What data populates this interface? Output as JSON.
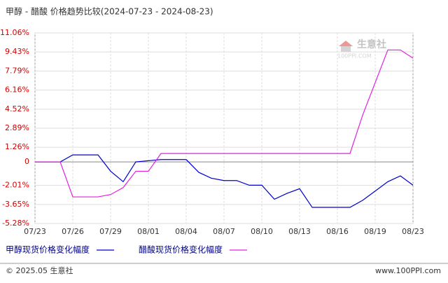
{
  "chart_data": {
    "type": "line",
    "title": "甲醇 - 醋酸 价格趋势比较(2024-07-23 - 2024-08-23)",
    "categories": [
      "07/23",
      null,
      null,
      "07/26",
      null,
      null,
      "07/29",
      null,
      null,
      "08/01",
      null,
      null,
      "08/04",
      null,
      null,
      "08/07",
      null,
      null,
      "08/10",
      null,
      null,
      "08/13",
      null,
      null,
      "08/16",
      null,
      null,
      "08/19",
      null,
      null,
      "08/23"
    ],
    "series": [
      {
        "name": "甲醇现货价格变化幅度",
        "color": "#0000cc",
        "values": [
          0,
          0,
          0,
          0.6,
          0.6,
          0.6,
          -0.8,
          -1.7,
          0,
          0.1,
          0.2,
          0.2,
          0.2,
          -0.9,
          -1.4,
          -1.6,
          -1.6,
          -2.0,
          -2.0,
          -3.2,
          -2.7,
          -2.3,
          -3.9,
          -3.9,
          -3.9,
          -3.9,
          -3.3,
          -2.5,
          -1.7,
          -1.2,
          -2.0
        ]
      },
      {
        "name": "醋酸现货价格变化幅度",
        "color": "#e020e0",
        "values": [
          0,
          0,
          0,
          -3.0,
          -3.0,
          -3.0,
          -2.8,
          -2.2,
          -0.8,
          -0.8,
          0.72,
          0.72,
          0.72,
          0.72,
          0.72,
          0.72,
          0.72,
          0.72,
          0.72,
          0.72,
          0.72,
          0.72,
          0.72,
          0.72,
          0.72,
          0.72,
          4.0,
          6.8,
          9.6,
          9.6,
          8.9
        ]
      }
    ],
    "ylim": [
      -5.28,
      11.06
    ],
    "yticks": [
      {
        "value": 11.06,
        "label": "11.06%"
      },
      {
        "value": 9.43,
        "label": "9.43%"
      },
      {
        "value": 7.79,
        "label": "7.79%"
      },
      {
        "value": 6.16,
        "label": "6.16%"
      },
      {
        "value": 4.52,
        "label": "4.52%"
      },
      {
        "value": 2.89,
        "label": "2.89%"
      },
      {
        "value": 1.26,
        "label": "1.26%"
      },
      0,
      {
        "value": -2.01,
        "label": "-2.01%"
      },
      {
        "value": -3.65,
        "label": "-3.65%"
      },
      {
        "value": -5.28,
        "label": "-5.28%"
      }
    ],
    "grid": true,
    "watermark": "生意社",
    "watermark_sub": "100PPI.COM",
    "footer_left": "© 2025.05 生意社",
    "footer_right": "www.100PPI.com"
  }
}
